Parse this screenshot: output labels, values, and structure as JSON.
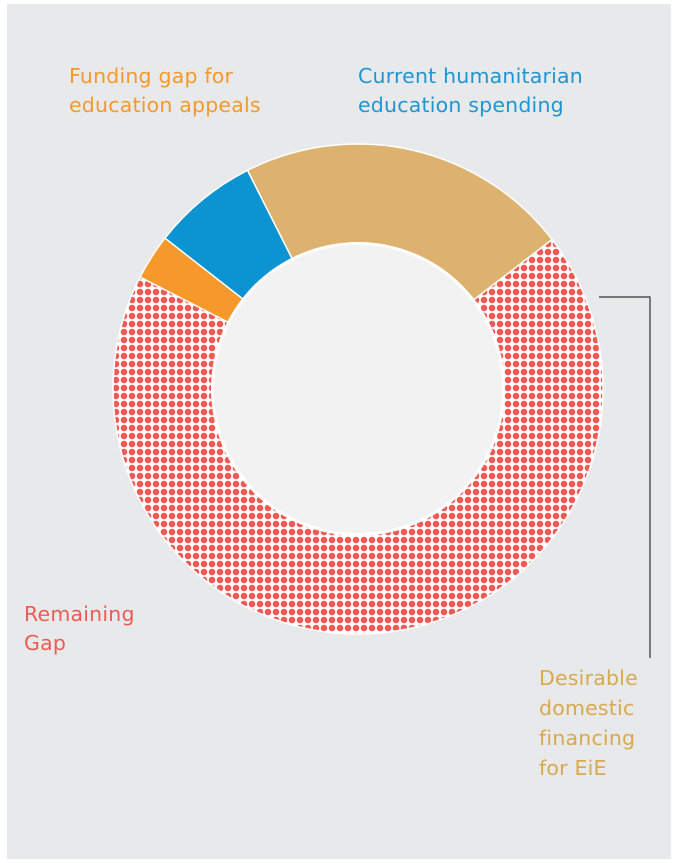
{
  "chart_data": {
    "type": "pie",
    "style": "donut",
    "slices": [
      {
        "label": "Current humanitarian education spending",
        "lines": [
          "Current humanitarian",
          "education spending"
        ],
        "value": 7,
        "color": "#0c93d1"
      },
      {
        "label": "Desirable domestic financing for EiE",
        "lines": [
          "Desirable",
          "domestic",
          "financing",
          "for EiE"
        ],
        "value": 22,
        "color": "#dcb26e"
      },
      {
        "label": "Remaining Gap",
        "lines": [
          "Remaining",
          "Gap"
        ],
        "value": 68,
        "color": "#ef5a54",
        "pattern": "dots"
      },
      {
        "label": "Funding gap for education appeals",
        "lines": [
          "Funding gap for",
          "education appeals"
        ],
        "value": 3,
        "color": "#f7982a"
      }
    ],
    "background": "#e8e9ea",
    "hole_color": "#f2f2f2",
    "title": "",
    "legend": "none"
  }
}
